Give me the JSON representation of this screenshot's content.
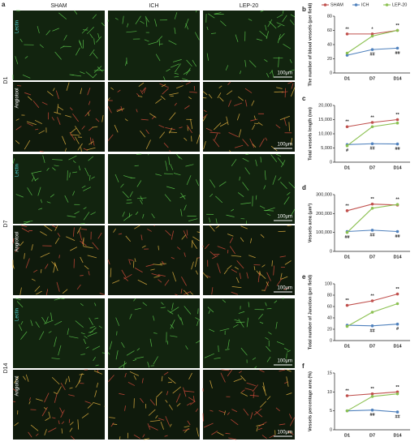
{
  "panel_a": {
    "label": "a",
    "columns": [
      "SHAM",
      "ICH",
      "LEP-20"
    ],
    "rows": [
      "D1",
      "D7",
      "D14"
    ],
    "stains": [
      "Lectin",
      "Angiotool"
    ],
    "scale_bar": "100μm"
  },
  "chart_data": [
    {
      "type": "line",
      "panel": "b",
      "y_label": "The number of blood vessels (per field)",
      "categories": [
        "D1",
        "D7",
        "D14"
      ],
      "series": [
        {
          "name": "SHAM",
          "color": "#c0504d",
          "values": [
            55,
            55,
            60
          ]
        },
        {
          "name": "ICH",
          "color": "#4f81bd",
          "values": [
            25,
            33,
            35
          ]
        },
        {
          "name": "LEP-20",
          "color": "#8cc152",
          "values": [
            28,
            52,
            60
          ]
        }
      ],
      "ylim": [
        0,
        80
      ],
      "yticks": [
        0,
        20,
        40,
        60,
        80
      ],
      "annotations": [
        "**",
        "*",
        "**",
        "##",
        "##"
      ]
    },
    {
      "type": "line",
      "panel": "c",
      "y_label": "Total vessels length (nm)",
      "categories": [
        "D1",
        "D7",
        "D14"
      ],
      "series": [
        {
          "color": "#c0504d",
          "values": [
            12500,
            14000,
            15000
          ]
        },
        {
          "color": "#4f81bd",
          "values": [
            6200,
            6500,
            6400
          ]
        },
        {
          "color": "#8cc152",
          "values": [
            5800,
            12500,
            13800
          ]
        }
      ],
      "ylim": [
        0,
        20000
      ],
      "yticks": [
        0,
        {
          "value": 5000,
          "label": "5,000"
        },
        {
          "value": 10000,
          "label": "10,000"
        },
        {
          "value": 15000,
          "label": "15,000"
        },
        {
          "value": 20000,
          "label": "20,000"
        }
      ],
      "annotations": [
        "**",
        "**",
        "**",
        "#",
        "##",
        "##"
      ]
    },
    {
      "type": "line",
      "panel": "d",
      "y_label": "Vessels area (μm²)",
      "categories": [
        "D1",
        "D7",
        "D14"
      ],
      "series": [
        {
          "color": "#c0504d",
          "values": [
            215000,
            250000,
            245000
          ]
        },
        {
          "color": "#4f81bd",
          "values": [
            105000,
            112000,
            105000
          ]
        },
        {
          "color": "#8cc152",
          "values": [
            100000,
            228000,
            248000
          ]
        }
      ],
      "ylim": [
        0,
        300000
      ],
      "yticks": [
        0,
        {
          "value": 100000,
          "label": "100,000"
        },
        {
          "value": 200000,
          "label": "200,000"
        },
        {
          "value": 300000,
          "label": "300,000"
        }
      ],
      "annotations": [
        "**",
        "**",
        "**",
        "##",
        "##",
        "##"
      ]
    },
    {
      "type": "line",
      "panel": "e",
      "y_label": "Total number of Junction (per field)",
      "categories": [
        "D1",
        "D7",
        "D14"
      ],
      "series": [
        {
          "color": "#c0504d",
          "values": [
            62,
            70,
            82
          ]
        },
        {
          "color": "#4f81bd",
          "values": [
            27,
            26,
            29
          ]
        },
        {
          "color": "#8cc152",
          "values": [
            25,
            50,
            65
          ]
        }
      ],
      "ylim": [
        0,
        100
      ],
      "yticks": [
        0,
        20,
        40,
        60,
        80,
        100
      ],
      "annotations": [
        "**",
        "**",
        "**",
        "##",
        "#"
      ]
    },
    {
      "type": "line",
      "panel": "f",
      "y_label": "Vessels percentage area (%)",
      "categories": [
        "D1",
        "D7",
        "D14"
      ],
      "series": [
        {
          "color": "#c0504d",
          "values": [
            9,
            9.5,
            10
          ]
        },
        {
          "color": "#4f81bd",
          "values": [
            5,
            5.2,
            4.7
          ]
        },
        {
          "color": "#8cc152",
          "values": [
            5,
            8.8,
            9.5
          ]
        }
      ],
      "ylim": [
        0,
        15
      ],
      "yticks": [
        0,
        5,
        10,
        15
      ],
      "annotations": [
        "**",
        "**",
        "**",
        "##",
        "##"
      ]
    }
  ]
}
